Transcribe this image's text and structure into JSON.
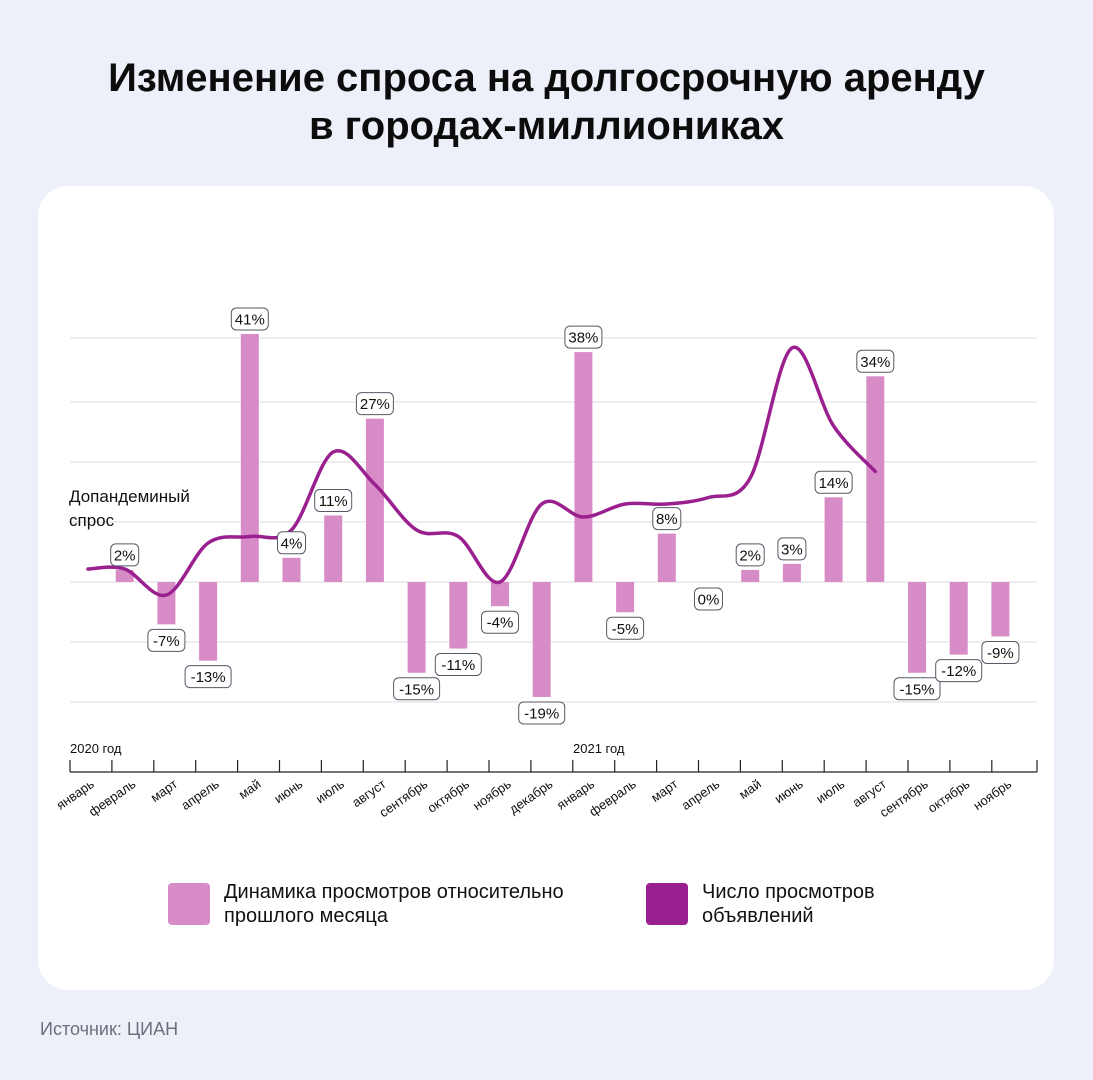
{
  "title_line1": "Изменение спроса на долгосрочную аренду",
  "title_line2": "в городах-миллиониках",
  "reference_label": "Допандеминый\nспрос",
  "source": "Источник: ЦИАН",
  "colors": {
    "bar": "#d78cc8",
    "line": "#9a1f8f",
    "background": "#eef0f9",
    "card": "#ffffff"
  },
  "chart_data": {
    "type": "bar",
    "year_labels": [
      "2020 год",
      "2021 год"
    ],
    "categories": [
      "январь",
      "февраль",
      "март",
      "апрель",
      "май",
      "июнь",
      "июль",
      "август",
      "сентябрь",
      "октябрь",
      "ноябрь",
      "декабрь",
      "январь",
      "февраль",
      "март",
      "апрель",
      "май",
      "июнь",
      "июль",
      "август",
      "сентябрь",
      "октябрь",
      "ноябрь"
    ],
    "series": [
      {
        "name": "Динамика просмотров относительно прошлого месяца",
        "kind": "bar",
        "values": [
          null,
          2,
          -7,
          -13,
          41,
          4,
          11,
          27,
          -15,
          -11,
          -4,
          -19,
          38,
          -5,
          8,
          0,
          2,
          3,
          14,
          34,
          -15,
          -12,
          -9
        ],
        "labels": [
          "",
          "2%",
          "-7%",
          "-13%",
          "41%",
          "4%",
          "11%",
          "27%",
          "-15%",
          "-11%",
          "-4%",
          "-19%",
          "38%",
          "-5%",
          "8%",
          "0%",
          "2%",
          "3%",
          "14%",
          "34%",
          "-15%",
          "-12%",
          "-9%"
        ]
      },
      {
        "name": "Число просмотров объявлений",
        "kind": "line",
        "values": [
          2,
          2,
          -2,
          6,
          7,
          8,
          20,
          15,
          8,
          7,
          0,
          12,
          10,
          12,
          12,
          13,
          16,
          36,
          24,
          17,
          null,
          null,
          null
        ]
      }
    ],
    "ylim": [
      -20,
      41
    ],
    "grid": true
  }
}
